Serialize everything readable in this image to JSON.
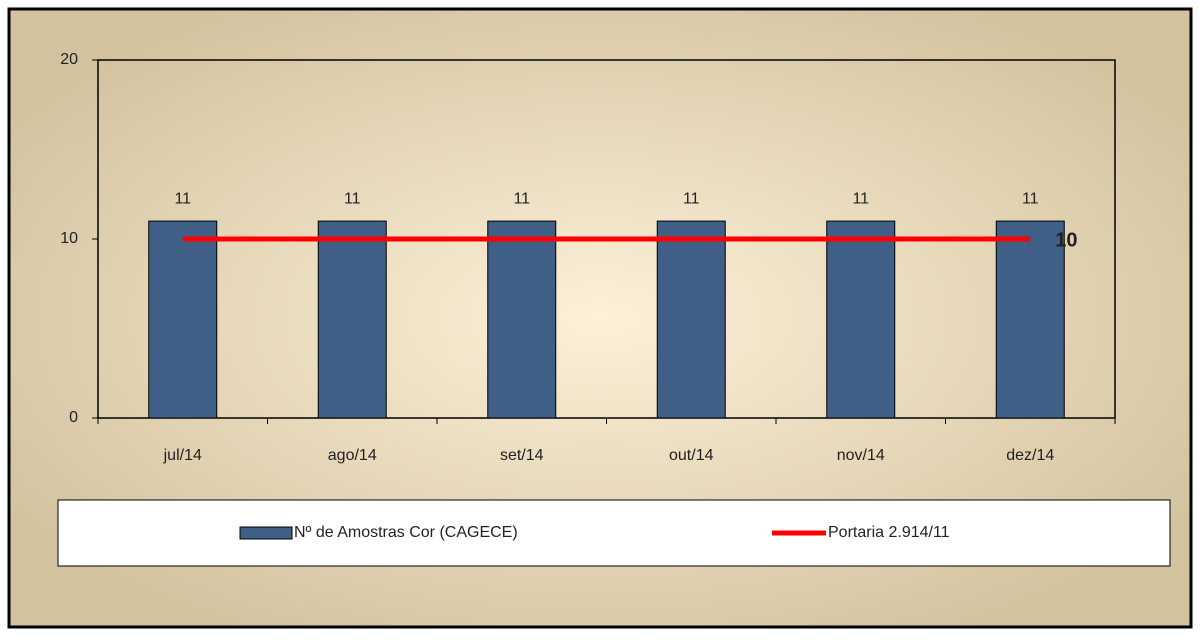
{
  "chart_data": {
    "type": "bar",
    "categories": [
      "jul/14",
      "ago/14",
      "set/14",
      "out/14",
      "nov/14",
      "dez/14"
    ],
    "series": [
      {
        "name": "Nº de Amostras Cor (CAGECE)",
        "color": "#3f5f87",
        "values": [
          11,
          11,
          11,
          11,
          11,
          11
        ]
      },
      {
        "name": "Portaria 2.914/11",
        "color": "#ff0000",
        "type": "line",
        "values": [
          10,
          10,
          10,
          10,
          10,
          10
        ]
      }
    ],
    "ylim": [
      0,
      20
    ],
    "yticks": [
      0,
      10,
      20
    ],
    "grid": false,
    "legend": "bottom"
  }
}
